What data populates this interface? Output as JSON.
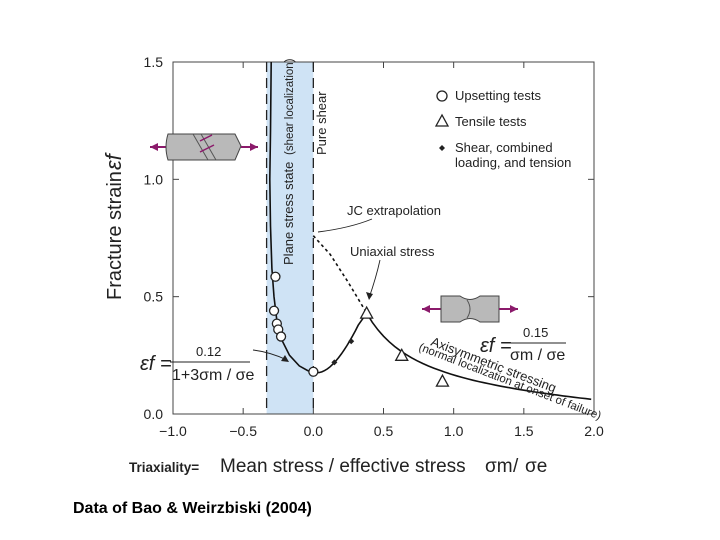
{
  "caption": "Data of Bao & Weirzbiski (2004)",
  "chart_data": {
    "type": "scatter",
    "title": "",
    "xlabel_prefix": "Triaxiality=",
    "xlabel": "Mean stress / effective stress",
    "xlabel_symbol_num": "σm",
    "xlabel_symbol_den": "σe",
    "ylabel": "Fracture strain",
    "ylabel_symbol": "εf",
    "xlim": [
      -1.0,
      2.0
    ],
    "ylim": [
      0.0,
      1.5
    ],
    "xticks": [
      "−1.0",
      "−0.5",
      "0.0",
      "0.5",
      "1.0",
      "1.5",
      "2.0"
    ],
    "xtick_values": [
      -1.0,
      -0.5,
      0.0,
      0.5,
      1.0,
      1.5,
      2.0
    ],
    "yticks": [
      "0.0",
      "0.5",
      "1.0",
      "1.5"
    ],
    "ytick_values": [
      0.0,
      0.5,
      1.0,
      1.5
    ],
    "shaded_region": {
      "x": [
        -0.333,
        0.0
      ],
      "label": "Plane stress state",
      "sublabel": "(shear localization)"
    },
    "pure_shear_label": "Pure shear",
    "legend": [
      {
        "marker": "circle",
        "label": "Upsetting tests"
      },
      {
        "marker": "triangle",
        "label": "Tensile tests"
      },
      {
        "marker": "diamond",
        "label": "Shear, combined",
        "label2": "loading, and tension"
      }
    ],
    "series": [
      {
        "name": "Upsetting tests",
        "marker": "circle",
        "x": [
          -0.27,
          -0.28,
          -0.26,
          -0.25,
          -0.23,
          0.0
        ],
        "y": [
          0.585,
          0.44,
          0.385,
          0.36,
          0.33,
          0.18
        ]
      },
      {
        "name": "Tensile tests",
        "marker": "triangle",
        "x": [
          0.38,
          0.63,
          0.92
        ],
        "y": [
          0.43,
          0.25,
          0.14
        ]
      },
      {
        "name": "Shear, combined loading, and tension",
        "marker": "diamond",
        "x": [
          0.15,
          0.27
        ],
        "y": [
          0.22,
          0.31
        ]
      }
    ],
    "curves": [
      {
        "name": "Compression fit",
        "formula_num": "0.12",
        "formula_den": "1+3σm / σe",
        "formula_lhs": "εf ="
      },
      {
        "name": "Axisymmetric fit",
        "formula_num": "0.15",
        "formula_den": "σm / σe",
        "formula_lhs": "εf ="
      }
    ],
    "annotations": {
      "jc": "JC extrapolation",
      "uniaxial": "Uniaxial stress",
      "axisym1": "Axisymmetric stressing",
      "axisym2": "(normal localization at onset of failure)"
    }
  }
}
